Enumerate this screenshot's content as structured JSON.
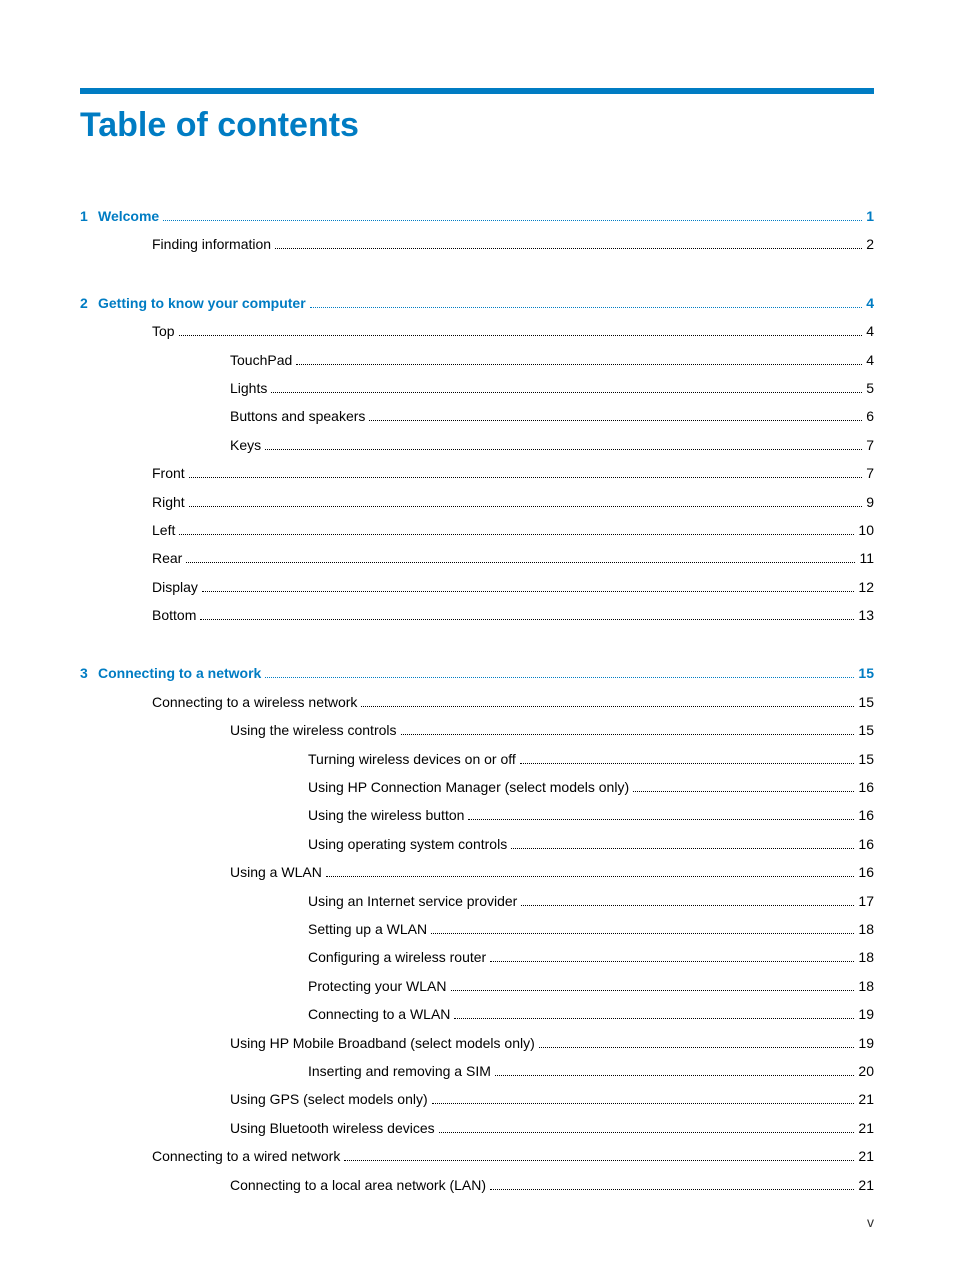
{
  "title": "Table of contents",
  "pageNumber": "v",
  "colors": {
    "accent": "#007cc3",
    "text": "#000000",
    "background": "#ffffff"
  },
  "sections": [
    {
      "number": "1",
      "title": "Welcome",
      "page": "1",
      "items": [
        {
          "indent": 1,
          "label": "Finding information",
          "page": "2"
        }
      ]
    },
    {
      "number": "2",
      "title": "Getting to know your computer",
      "page": "4",
      "items": [
        {
          "indent": 1,
          "label": "Top",
          "page": "4"
        },
        {
          "indent": 2,
          "label": "TouchPad",
          "page": "4"
        },
        {
          "indent": 2,
          "label": "Lights",
          "page": "5"
        },
        {
          "indent": 2,
          "label": "Buttons and speakers",
          "page": "6"
        },
        {
          "indent": 2,
          "label": "Keys",
          "page": "7"
        },
        {
          "indent": 1,
          "label": "Front",
          "page": "7"
        },
        {
          "indent": 1,
          "label": "Right",
          "page": "9"
        },
        {
          "indent": 1,
          "label": "Left",
          "page": "10"
        },
        {
          "indent": 1,
          "label": "Rear",
          "page": "11"
        },
        {
          "indent": 1,
          "label": "Display",
          "page": "12"
        },
        {
          "indent": 1,
          "label": "Bottom",
          "page": "13"
        }
      ]
    },
    {
      "number": "3",
      "title": "Connecting to a network",
      "page": "15",
      "items": [
        {
          "indent": 1,
          "label": "Connecting to a wireless network",
          "page": "15"
        },
        {
          "indent": 2,
          "label": "Using the wireless controls",
          "page": "15"
        },
        {
          "indent": 3,
          "label": "Turning wireless devices on or off",
          "page": "15"
        },
        {
          "indent": 3,
          "label": "Using HP Connection Manager (select models only)",
          "page": "16"
        },
        {
          "indent": 3,
          "label": "Using the wireless button",
          "page": "16"
        },
        {
          "indent": 3,
          "label": "Using operating system controls",
          "page": "16"
        },
        {
          "indent": 2,
          "label": "Using a WLAN",
          "page": "16"
        },
        {
          "indent": 3,
          "label": "Using an Internet service provider",
          "page": "17"
        },
        {
          "indent": 3,
          "label": "Setting up a WLAN",
          "page": "18"
        },
        {
          "indent": 3,
          "label": "Configuring a wireless router",
          "page": "18"
        },
        {
          "indent": 3,
          "label": "Protecting your WLAN",
          "page": "18"
        },
        {
          "indent": 3,
          "label": "Connecting to a WLAN",
          "page": "19"
        },
        {
          "indent": 2,
          "label": "Using HP Mobile Broadband (select models only)",
          "page": "19"
        },
        {
          "indent": 3,
          "label": "Inserting and removing a SIM",
          "page": "20"
        },
        {
          "indent": 2,
          "label": "Using GPS (select models only)",
          "page": "21"
        },
        {
          "indent": 2,
          "label": "Using Bluetooth wireless devices",
          "page": "21"
        },
        {
          "indent": 1,
          "label": "Connecting to a wired network",
          "page": "21"
        },
        {
          "indent": 2,
          "label": "Connecting to a local area network (LAN)",
          "page": "21"
        }
      ]
    }
  ]
}
